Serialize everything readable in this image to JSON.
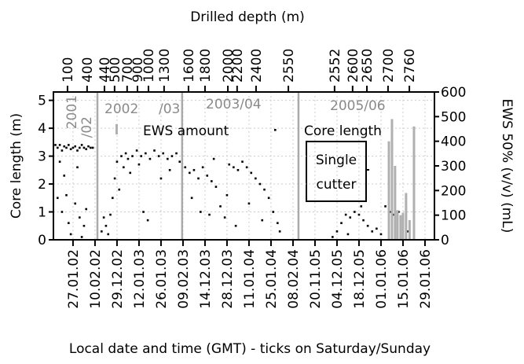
{
  "chart_data": {
    "type": "scatter",
    "xlabel": "Local date and time (GMT) - ticks on Saturday/Sunday",
    "ylabel": "Core length (m)",
    "y2label": "EWS 50% (v/v) (mL)",
    "x2label": "Drilled depth (m)",
    "xlim": [
      -0.89,
      16.43
    ],
    "ylim": [
      0,
      5.3
    ],
    "y2lim": [
      0,
      600
    ],
    "grid": true,
    "xticks": [
      {
        "value": 0,
        "label": "27.01.02"
      },
      {
        "value": 1,
        "label": "10.02.02"
      },
      {
        "value": 2,
        "label": "29.12.02"
      },
      {
        "value": 3,
        "label": "12.01.03"
      },
      {
        "value": 4,
        "label": "26.01.03"
      },
      {
        "value": 5,
        "label": "09.02.03"
      },
      {
        "value": 6,
        "label": "14.12.03"
      },
      {
        "value": 7,
        "label": "28.12.03"
      },
      {
        "value": 8,
        "label": "11.01.04"
      },
      {
        "value": 9,
        "label": "25.01.04"
      },
      {
        "value": 10,
        "label": "08.02.04"
      },
      {
        "value": 11,
        "label": "20.11.05"
      },
      {
        "value": 12,
        "label": "04.12.05"
      },
      {
        "value": 13,
        "label": "18.12.05"
      },
      {
        "value": 14,
        "label": "01.01.06"
      },
      {
        "value": 15,
        "label": "15.01.06"
      },
      {
        "value": 16,
        "label": "29.01.06"
      }
    ],
    "x2ticks": [
      {
        "value": -0.25,
        "label": "100"
      },
      {
        "value": 0.64,
        "label": "400"
      },
      {
        "value": 1.43,
        "label": "440"
      },
      {
        "value": 1.89,
        "label": "500"
      },
      {
        "value": 2.46,
        "label": "700"
      },
      {
        "value": 2.93,
        "label": "900"
      },
      {
        "value": 3.43,
        "label": "1000"
      },
      {
        "value": 4.14,
        "label": "1300"
      },
      {
        "value": 5.25,
        "label": "1600"
      },
      {
        "value": 6.0,
        "label": "1800"
      },
      {
        "value": 7.04,
        "label": "2000"
      },
      {
        "value": 7.46,
        "label": "2200"
      },
      {
        "value": 8.32,
        "label": "2400"
      },
      {
        "value": 9.79,
        "label": "2550"
      },
      {
        "value": 11.89,
        "label": "2552"
      },
      {
        "value": 12.71,
        "label": "2600"
      },
      {
        "value": 13.36,
        "label": "2650"
      },
      {
        "value": 14.32,
        "label": "2700"
      },
      {
        "value": 15.29,
        "label": "2760"
      }
    ],
    "yticks": [
      0,
      1,
      2,
      3,
      4,
      5
    ],
    "y2ticks": [
      0,
      100,
      200,
      300,
      400,
      500,
      600
    ],
    "separators": [
      1.11,
      4.96,
      10.25
    ],
    "annotations": [
      "2001",
      "/02",
      "2002",
      "/03",
      "2003/04",
      "2005/06",
      "Single",
      "cutter"
    ],
    "series": [
      {
        "name": "Core length",
        "color": "#000000",
        "x": [
          -0.8,
          -0.7,
          -0.6,
          -0.5,
          -0.4,
          -0.3,
          -0.2,
          -0.1,
          0.0,
          0.1,
          0.2,
          0.3,
          0.4,
          0.5,
          0.6,
          0.7,
          0.8,
          0.9,
          -0.6,
          -0.4,
          -0.3,
          -0.5,
          -0.2,
          -0.1,
          0.1,
          0.2,
          0.3,
          0.5,
          0.6,
          -0.7,
          0.4,
          1.3,
          1.4,
          1.5,
          1.6,
          1.7,
          1.8,
          1.9,
          2.0,
          2.1,
          2.2,
          2.3,
          2.4,
          2.5,
          2.7,
          2.9,
          3.1,
          3.3,
          3.5,
          3.7,
          3.9,
          4.1,
          4.3,
          4.5,
          4.7,
          4.85,
          3.2,
          3.4,
          4.0,
          4.4,
          2.6,
          3.0,
          5.1,
          5.3,
          5.5,
          5.7,
          5.9,
          6.1,
          6.3,
          6.5,
          6.7,
          6.9,
          7.1,
          7.3,
          7.5,
          7.7,
          7.9,
          8.1,
          8.3,
          8.5,
          8.7,
          8.9,
          9.1,
          9.3,
          9.4,
          5.4,
          5.8,
          6.2,
          7.4,
          8.0,
          8.6,
          7.0,
          6.4,
          11.8,
          12.0,
          12.2,
          12.4,
          12.6,
          12.8,
          13.0,
          13.2,
          13.4,
          13.6,
          13.8,
          14.0,
          14.2,
          14.4,
          14.6,
          14.8,
          15.0,
          15.2,
          12.5,
          13.1
        ],
        "values": [
          3.4,
          3.3,
          3.4,
          3.2,
          3.35,
          3.3,
          3.4,
          3.25,
          3.3,
          3.35,
          3.2,
          3.3,
          3.4,
          3.3,
          3.25,
          3.35,
          3.3,
          3.3,
          2.8,
          2.3,
          1.6,
          1.0,
          0.6,
          0.2,
          1.3,
          2.6,
          0.8,
          0.5,
          1.1,
          1.5,
          0.1,
          0.3,
          0.8,
          0.5,
          0.2,
          0.9,
          1.5,
          2.2,
          2.8,
          1.8,
          3.0,
          2.6,
          3.1,
          2.9,
          3.0,
          3.2,
          3.0,
          3.1,
          2.9,
          3.2,
          3.0,
          3.1,
          2.9,
          3.0,
          3.1,
          2.8,
          1.0,
          0.7,
          2.2,
          2.5,
          2.4,
          2.7,
          2.6,
          2.4,
          2.5,
          2.2,
          2.6,
          2.3,
          2.1,
          1.9,
          1.2,
          0.8,
          2.7,
          2.6,
          2.5,
          2.8,
          2.6,
          2.4,
          2.2,
          2.0,
          1.8,
          1.5,
          1.0,
          0.6,
          0.3,
          1.5,
          1.0,
          0.9,
          0.5,
          1.3,
          0.7,
          1.6,
          2.9,
          0.1,
          0.3,
          0.6,
          0.9,
          0.8,
          1.0,
          0.9,
          0.7,
          0.5,
          0.3,
          0.4,
          0.2,
          1.2,
          1.0,
          0.9,
          1.0,
          0.8,
          0.3,
          0.2,
          1.2
        ]
      },
      {
        "name": "EWS amount",
        "color": "#b0b0b0",
        "axis": "y2",
        "x": [
          14.36,
          14.5,
          14.64,
          14.75,
          14.89,
          15.0,
          15.14,
          15.3,
          15.5
        ],
        "values": [
          400,
          490,
          300,
          120,
          100,
          110,
          190,
          80,
          460
        ]
      }
    ]
  }
}
